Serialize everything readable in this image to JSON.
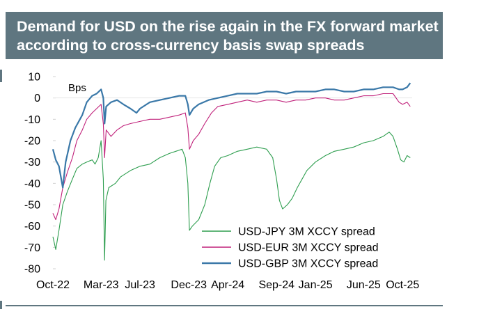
{
  "header": {
    "title": "Demand for USD on the rise again in the FX forward market according to cross-currency basis swap spreads"
  },
  "colors": {
    "band": "#5f7680",
    "usd_jpy": "#2e9e4f",
    "usd_eur": "#c0207a",
    "usd_gbp": "#3a78a8",
    "axis_text": "#000000",
    "grid": "#e6e6e6"
  },
  "chart_data": {
    "type": "line",
    "ylabel": "Bps",
    "ylim": [
      -80,
      10
    ],
    "yticks": [
      10,
      0,
      -10,
      -20,
      -30,
      -40,
      -50,
      -60,
      -70,
      -80
    ],
    "xlim": [
      "2022-10-01",
      "2025-10-31"
    ],
    "xtick_labels": [
      "Oct-22",
      "Mar-23",
      "Jul-23",
      "Dec-23",
      "Apr-24",
      "Sep-24",
      "Jan-25",
      "Jun-25",
      "Oct-25"
    ],
    "xtick_dates": [
      "2022-10-01",
      "2023-03-01",
      "2023-07-01",
      "2023-12-01",
      "2024-04-01",
      "2024-09-01",
      "2025-01-01",
      "2025-06-01",
      "2025-10-01"
    ],
    "legend_position": "bottom-right",
    "grid": false,
    "series": [
      {
        "name": "USD-JPY 3M XCCY spread",
        "color": "#2e9e4f",
        "width": 1.1,
        "points": [
          [
            "2022-10-01",
            -65
          ],
          [
            "2022-10-10",
            -71
          ],
          [
            "2022-10-20",
            -62
          ],
          [
            "2022-11-01",
            -50
          ],
          [
            "2022-11-15",
            -44
          ],
          [
            "2022-12-01",
            -38
          ],
          [
            "2022-12-15",
            -33
          ],
          [
            "2023-01-01",
            -31
          ],
          [
            "2023-01-15",
            -30
          ],
          [
            "2023-02-01",
            -29
          ],
          [
            "2023-02-10",
            -31
          ],
          [
            "2023-02-20",
            -28
          ],
          [
            "2023-03-01",
            -20
          ],
          [
            "2023-03-08",
            -38
          ],
          [
            "2023-03-12",
            -76
          ],
          [
            "2023-03-16",
            -48
          ],
          [
            "2023-03-25",
            -42
          ],
          [
            "2023-04-15",
            -40
          ],
          [
            "2023-05-01",
            -37
          ],
          [
            "2023-06-01",
            -34
          ],
          [
            "2023-07-01",
            -32
          ],
          [
            "2023-08-01",
            -31
          ],
          [
            "2023-09-01",
            -28
          ],
          [
            "2023-10-01",
            -26
          ],
          [
            "2023-11-10",
            -24
          ],
          [
            "2023-11-20",
            -28
          ],
          [
            "2023-11-28",
            -40
          ],
          [
            "2023-12-03",
            -62
          ],
          [
            "2023-12-12",
            -60
          ],
          [
            "2024-01-01",
            -57
          ],
          [
            "2024-01-20",
            -50
          ],
          [
            "2024-02-05",
            -40
          ],
          [
            "2024-02-20",
            -32
          ],
          [
            "2024-03-10",
            -28
          ],
          [
            "2024-04-01",
            -27
          ],
          [
            "2024-05-01",
            -25
          ],
          [
            "2024-06-01",
            -24
          ],
          [
            "2024-07-01",
            -23
          ],
          [
            "2024-08-01",
            -24
          ],
          [
            "2024-08-20",
            -28
          ],
          [
            "2024-09-01",
            -38
          ],
          [
            "2024-09-10",
            -48
          ],
          [
            "2024-09-20",
            -52
          ],
          [
            "2024-10-05",
            -50
          ],
          [
            "2024-10-20",
            -47
          ],
          [
            "2024-11-05",
            -42
          ],
          [
            "2024-11-20",
            -38
          ],
          [
            "2024-12-05",
            -34
          ],
          [
            "2025-01-01",
            -30
          ],
          [
            "2025-02-01",
            -27
          ],
          [
            "2025-03-01",
            -25
          ],
          [
            "2025-04-01",
            -24
          ],
          [
            "2025-05-01",
            -23
          ],
          [
            "2025-06-01",
            -21
          ],
          [
            "2025-07-01",
            -20
          ],
          [
            "2025-08-01",
            -18
          ],
          [
            "2025-08-20",
            -16
          ],
          [
            "2025-09-01",
            -18
          ],
          [
            "2025-09-15",
            -24
          ],
          [
            "2025-09-25",
            -29
          ],
          [
            "2025-10-05",
            -30
          ],
          [
            "2025-10-15",
            -27
          ],
          [
            "2025-10-25",
            -28
          ]
        ]
      },
      {
        "name": "USD-EUR 3M XCCY spread",
        "color": "#c0207a",
        "width": 1.1,
        "points": [
          [
            "2022-10-01",
            -54
          ],
          [
            "2022-10-10",
            -57
          ],
          [
            "2022-10-20",
            -52
          ],
          [
            "2022-11-01",
            -42
          ],
          [
            "2022-11-15",
            -35
          ],
          [
            "2022-12-01",
            -28
          ],
          [
            "2022-12-15",
            -20
          ],
          [
            "2023-01-01",
            -15
          ],
          [
            "2023-01-15",
            -10
          ],
          [
            "2023-02-01",
            -7
          ],
          [
            "2023-02-15",
            -5
          ],
          [
            "2023-03-01",
            -3
          ],
          [
            "2023-03-08",
            -12
          ],
          [
            "2023-03-12",
            -28
          ],
          [
            "2023-03-17",
            -15
          ],
          [
            "2023-04-01",
            -18
          ],
          [
            "2023-04-20",
            -15
          ],
          [
            "2023-05-10",
            -13
          ],
          [
            "2023-06-01",
            -12
          ],
          [
            "2023-07-01",
            -11
          ],
          [
            "2023-08-01",
            -10
          ],
          [
            "2023-09-01",
            -10
          ],
          [
            "2023-10-01",
            -9
          ],
          [
            "2023-11-01",
            -8
          ],
          [
            "2023-11-20",
            -7
          ],
          [
            "2023-11-28",
            -14
          ],
          [
            "2023-12-03",
            -24
          ],
          [
            "2023-12-15",
            -20
          ],
          [
            "2024-01-01",
            -17
          ],
          [
            "2024-01-20",
            -12
          ],
          [
            "2024-02-10",
            -7
          ],
          [
            "2024-03-01",
            -4
          ],
          [
            "2024-04-01",
            -3
          ],
          [
            "2024-05-01",
            -2
          ],
          [
            "2024-06-01",
            -1
          ],
          [
            "2024-07-01",
            -2
          ],
          [
            "2024-08-01",
            -1
          ],
          [
            "2024-09-01",
            -1
          ],
          [
            "2024-10-01",
            -2
          ],
          [
            "2024-11-01",
            -1
          ],
          [
            "2024-12-01",
            -1
          ],
          [
            "2025-01-01",
            0
          ],
          [
            "2025-02-01",
            0
          ],
          [
            "2025-03-01",
            -1
          ],
          [
            "2025-04-01",
            -1
          ],
          [
            "2025-05-01",
            0
          ],
          [
            "2025-06-01",
            1
          ],
          [
            "2025-07-01",
            1
          ],
          [
            "2025-08-01",
            2
          ],
          [
            "2025-09-01",
            2
          ],
          [
            "2025-09-20",
            -2
          ],
          [
            "2025-10-01",
            -3
          ],
          [
            "2025-10-15",
            -2
          ],
          [
            "2025-10-25",
            -4
          ]
        ]
      },
      {
        "name": "USD-GBP 3M XCCY spread",
        "color": "#3a78a8",
        "width": 2.2,
        "points": [
          [
            "2022-10-01",
            -24
          ],
          [
            "2022-10-10",
            -29
          ],
          [
            "2022-10-20",
            -32
          ],
          [
            "2022-11-01",
            -42
          ],
          [
            "2022-11-10",
            -30
          ],
          [
            "2022-11-25",
            -20
          ],
          [
            "2022-12-10",
            -14
          ],
          [
            "2023-01-01",
            -8
          ],
          [
            "2023-01-15",
            -2
          ],
          [
            "2023-02-01",
            1
          ],
          [
            "2023-02-15",
            2
          ],
          [
            "2023-03-01",
            4
          ],
          [
            "2023-03-08",
            0
          ],
          [
            "2023-03-12",
            -12
          ],
          [
            "2023-03-17",
            -4
          ],
          [
            "2023-04-01",
            -2
          ],
          [
            "2023-04-20",
            -1
          ],
          [
            "2023-05-10",
            -3
          ],
          [
            "2023-06-01",
            -5
          ],
          [
            "2023-06-20",
            -7
          ],
          [
            "2023-07-01",
            -5
          ],
          [
            "2023-08-01",
            -2
          ],
          [
            "2023-09-01",
            -1
          ],
          [
            "2023-10-01",
            0
          ],
          [
            "2023-11-01",
            1
          ],
          [
            "2023-11-20",
            1
          ],
          [
            "2023-11-28",
            -3
          ],
          [
            "2023-12-03",
            -8
          ],
          [
            "2023-12-15",
            -5
          ],
          [
            "2024-01-01",
            -3
          ],
          [
            "2024-02-01",
            -1
          ],
          [
            "2024-03-01",
            0
          ],
          [
            "2024-04-01",
            1
          ],
          [
            "2024-05-01",
            2
          ],
          [
            "2024-06-01",
            2
          ],
          [
            "2024-07-01",
            2
          ],
          [
            "2024-08-01",
            3
          ],
          [
            "2024-09-01",
            3
          ],
          [
            "2024-10-01",
            2
          ],
          [
            "2024-11-01",
            3
          ],
          [
            "2024-12-01",
            3
          ],
          [
            "2025-01-01",
            3
          ],
          [
            "2025-02-01",
            4
          ],
          [
            "2025-03-01",
            4
          ],
          [
            "2025-04-01",
            3
          ],
          [
            "2025-05-01",
            3
          ],
          [
            "2025-06-01",
            4
          ],
          [
            "2025-07-01",
            4
          ],
          [
            "2025-08-01",
            5
          ],
          [
            "2025-09-01",
            5
          ],
          [
            "2025-09-20",
            4
          ],
          [
            "2025-10-01",
            4
          ],
          [
            "2025-10-15",
            5
          ],
          [
            "2025-10-25",
            7
          ]
        ]
      }
    ]
  }
}
